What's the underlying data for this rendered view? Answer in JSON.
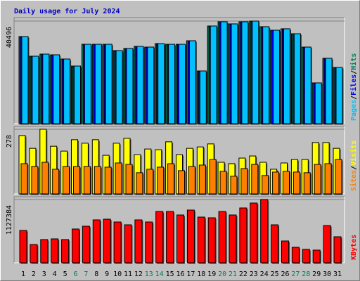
{
  "chart_data": [
    {
      "type": "bar",
      "title": "Daily usage for July 2024",
      "legend_separator": "/",
      "ylim": [
        0,
        40496
      ],
      "yticks": [
        40496
      ],
      "series": [
        {
          "name": "Hits",
          "color": "#00805c",
          "values": [
            34390,
            26630,
            27460,
            27180,
            25520,
            22740,
            31340,
            31340,
            31340,
            28850,
            29680,
            30510,
            30230,
            31620,
            31340,
            31340,
            32730,
            20800,
            38550,
            40220,
            39390,
            40220,
            40496,
            38280,
            36890,
            37450,
            35500,
            30230,
            16090,
            25800,
            22190
          ]
        },
        {
          "name": "Files",
          "color": "#0000ff",
          "values": [
            34390,
            26630,
            27460,
            27180,
            25520,
            22740,
            31340,
            31340,
            31340,
            28850,
            29680,
            30510,
            30230,
            31620,
            31340,
            31340,
            32730,
            20800,
            38550,
            40220,
            39390,
            40220,
            40496,
            38280,
            36890,
            37450,
            35500,
            30230,
            16090,
            25800,
            22190
          ]
        },
        {
          "name": "Pages",
          "color": "#00c0ff",
          "values": [
            34390,
            26630,
            27460,
            27180,
            25520,
            22740,
            31340,
            31340,
            31340,
            28850,
            29680,
            30510,
            30230,
            31620,
            31340,
            31340,
            32730,
            20800,
            38550,
            40220,
            39390,
            40220,
            40496,
            38280,
            36890,
            37450,
            35500,
            30230,
            16090,
            25800,
            22190
          ]
        }
      ]
    },
    {
      "type": "bar",
      "legend_separator": "/",
      "ylim": [
        0,
        278
      ],
      "yticks": [
        278
      ],
      "series": [
        {
          "name": "Visits",
          "color": "#ffff00",
          "values": [
            251,
            196,
            278,
            205,
            184,
            233,
            218,
            233,
            166,
            218,
            239,
            169,
            193,
            190,
            224,
            169,
            196,
            202,
            215,
            136,
            130,
            154,
            163,
            136,
            106,
            133,
            148,
            148,
            221,
            221,
            196
          ]
        },
        {
          "name": "Sites",
          "color": "#ff8000",
          "values": [
            130,
            118,
            136,
            106,
            118,
            118,
            118,
            118,
            115,
            133,
            127,
            91,
            106,
            115,
            130,
            100,
            118,
            124,
            148,
            97,
            76,
            109,
            127,
            79,
            94,
            97,
            94,
            91,
            127,
            130,
            148
          ]
        }
      ]
    },
    {
      "type": "bar",
      "ylim": [
        0,
        1127384
      ],
      "yticks": [
        1127384
      ],
      "categories": [
        "1",
        "2",
        "3",
        "4",
        "5",
        "6",
        "7",
        "8",
        "9",
        "10",
        "11",
        "12",
        "13",
        "14",
        "15",
        "16",
        "17",
        "18",
        "19",
        "20",
        "21",
        "22",
        "23",
        "24",
        "25",
        "26",
        "27",
        "28",
        "29",
        "30",
        "31"
      ],
      "category_colors": [
        "#000000",
        "#000000",
        "#000000",
        "#000000",
        "#000000",
        "#00805c",
        "#00805c",
        "#000000",
        "#000000",
        "#000000",
        "#000000",
        "#000000",
        "#00805c",
        "#00805c",
        "#000000",
        "#000000",
        "#000000",
        "#000000",
        "#000000",
        "#00805c",
        "#00805c",
        "#000000",
        "#000000",
        "#000000",
        "#000000",
        "#000000",
        "#00805c",
        "#00805c",
        "#000000",
        "#000000",
        "#000000"
      ],
      "series": [
        {
          "name": "KBytes",
          "color": "#ff0000",
          "values": [
            576200,
            325690,
            413370,
            425900,
            413370,
            601270,
            651380,
            764120,
            776640,
            726540,
            676430,
            764120,
            726540,
            914430,
            914430,
            851800,
            939490,
            814220,
            801690,
            914430,
            851800,
            977070,
            1064750,
            1127384,
            676430,
            388320,
            275580,
            238000,
            225480,
            663900,
            463480
          ]
        }
      ]
    }
  ]
}
